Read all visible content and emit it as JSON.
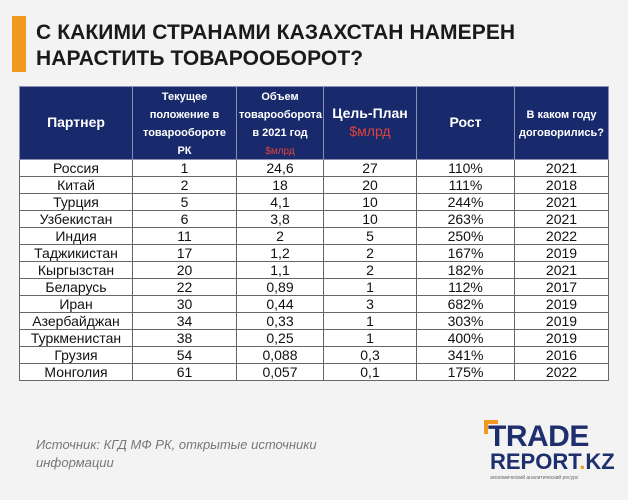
{
  "title": "С КАКИМИ СТРАНАМИ КАЗАХСТАН НАМЕРЕН НАРАСТИТЬ ТОВАРООБОРОТ?",
  "table": {
    "headers": {
      "partner": "Партнер",
      "position": "Текущее положение в товарообороте РК",
      "volume": "Объем товарооборота в 2021 год",
      "volume_unit": "$млрд",
      "target": "Цель-План",
      "target_unit": "$млрд",
      "growth": "Рост",
      "year": "В каком году договорились?"
    },
    "rows": [
      {
        "partner": "Россия",
        "position": "1",
        "volume": "24,6",
        "target": "27",
        "growth": "110%",
        "year": "2021"
      },
      {
        "partner": "Китай",
        "position": "2",
        "volume": "18",
        "target": "20",
        "growth": "111%",
        "year": "2018"
      },
      {
        "partner": "Турция",
        "position": "5",
        "volume": "4,1",
        "target": "10",
        "growth": "244%",
        "year": "2021"
      },
      {
        "partner": "Узбекистан",
        "position": "6",
        "volume": "3,8",
        "target": "10",
        "growth": "263%",
        "year": "2021"
      },
      {
        "partner": "Индия",
        "position": "11",
        "volume": "2",
        "target": "5",
        "growth": "250%",
        "year": "2022"
      },
      {
        "partner": "Таджикистан",
        "position": "17",
        "volume": "1,2",
        "target": "2",
        "growth": "167%",
        "year": "2019"
      },
      {
        "partner": "Кыргызстан",
        "position": "20",
        "volume": "1,1",
        "target": "2",
        "growth": "182%",
        "year": "2021"
      },
      {
        "partner": "Беларусь",
        "position": "22",
        "volume": "0,89",
        "target": "1",
        "growth": "112%",
        "year": "2017"
      },
      {
        "partner": "Иран",
        "position": "30",
        "volume": "0,44",
        "target": "3",
        "growth": "682%",
        "year": "2019"
      },
      {
        "partner": "Азербайджан",
        "position": "34",
        "volume": "0,33",
        "target": "1",
        "growth": "303%",
        "year": "2019"
      },
      {
        "partner": "Туркменистан",
        "position": "38",
        "volume": "0,25",
        "target": "1",
        "growth": "400%",
        "year": "2019"
      },
      {
        "partner": "Грузия",
        "position": "54",
        "volume": "0,088",
        "target": "0,3",
        "growth": "341%",
        "year": "2016"
      },
      {
        "partner": "Монголия",
        "position": "61",
        "volume": "0,057",
        "target": "0,1",
        "growth": "175%",
        "year": "2022"
      }
    ]
  },
  "source": "Источник: КГД МФ РК, открытые источники информации",
  "logo": {
    "line1": "TRADE",
    "line2_a": "REPORT",
    "line2_dot": ".",
    "line2_b": "KZ",
    "tagline": "экономический аналитический ресурс"
  },
  "colors": {
    "accent": "#f29a1f",
    "header_bg": "#182a6b",
    "unit_red": "#e0433a"
  }
}
